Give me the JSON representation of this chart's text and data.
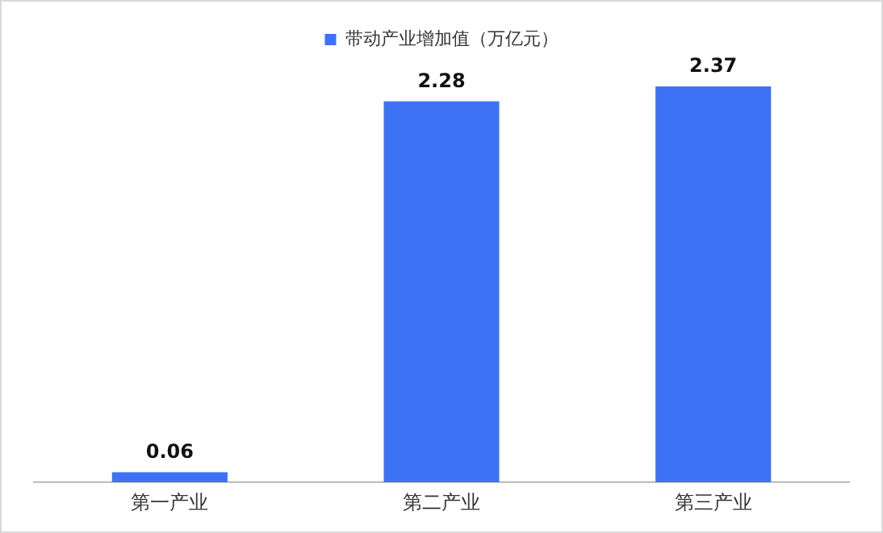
{
  "chart_data": {
    "type": "bar",
    "categories": [
      "第一产业",
      "第二产业",
      "第三产业"
    ],
    "series": [
      {
        "name": "带动产业增加值（万亿元）",
        "color": "#3d72f6",
        "values": [
          0.06,
          2.28,
          2.37
        ]
      }
    ],
    "data_labels": true,
    "legend": "top",
    "grid": false
  }
}
